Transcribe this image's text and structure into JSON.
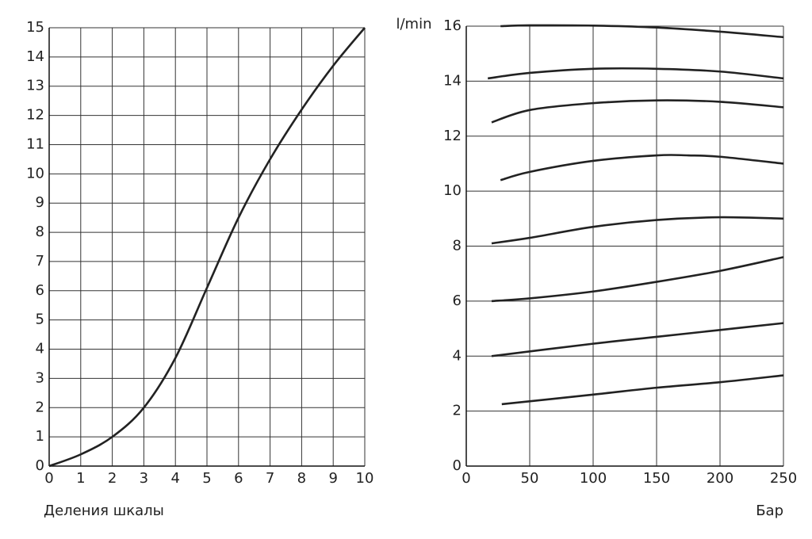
{
  "chart_data": [
    {
      "type": "line",
      "xlabel": "Деления шкалы",
      "xlim": [
        0,
        10
      ],
      "xticks": [
        0,
        1,
        2,
        3,
        4,
        5,
        6,
        7,
        8,
        9,
        10
      ],
      "ylim": [
        0,
        15
      ],
      "yticks": [
        0,
        1,
        2,
        3,
        4,
        5,
        6,
        7,
        8,
        9,
        10,
        11,
        12,
        13,
        14,
        15
      ],
      "grid": true,
      "series": [
        {
          "color": "#222222",
          "x": [
            0,
            1,
            2,
            3,
            4,
            5,
            6,
            7,
            8,
            9,
            10
          ],
          "values": [
            0,
            0.4,
            1,
            2,
            3.7,
            6.1,
            8.5,
            10.5,
            12.2,
            13.7,
            15
          ]
        }
      ]
    },
    {
      "type": "line",
      "xlabel": "Бар",
      "ylabel": "l/min",
      "xlim": [
        0,
        250
      ],
      "xticks": [
        0,
        50,
        100,
        150,
        200,
        250
      ],
      "ylim": [
        0,
        16
      ],
      "yticks": [
        0,
        2,
        4,
        6,
        8,
        10,
        12,
        14,
        16
      ],
      "grid": true,
      "series": [
        {
          "color": "#222222",
          "x": [
            27,
            50,
            100,
            150,
            200,
            250
          ],
          "values": [
            16,
            16.03,
            16.02,
            15.95,
            15.8,
            15.6
          ]
        },
        {
          "color": "#222222",
          "x": [
            17,
            50,
            100,
            150,
            200,
            250
          ],
          "values": [
            14.1,
            14.3,
            14.45,
            14.45,
            14.35,
            14.1
          ]
        },
        {
          "color": "#222222",
          "x": [
            20,
            50,
            100,
            150,
            200,
            250
          ],
          "values": [
            12.5,
            12.95,
            13.2,
            13.3,
            13.25,
            13.05
          ]
        },
        {
          "color": "#222222",
          "x": [
            27,
            50,
            100,
            150,
            175,
            200,
            250
          ],
          "values": [
            10.4,
            10.7,
            11.1,
            11.3,
            11.3,
            11.25,
            11.0
          ]
        },
        {
          "color": "#222222",
          "x": [
            20,
            50,
            100,
            150,
            200,
            250
          ],
          "values": [
            8.1,
            8.3,
            8.7,
            8.95,
            9.05,
            9.0
          ]
        },
        {
          "color": "#222222",
          "x": [
            20,
            50,
            100,
            150,
            200,
            250
          ],
          "values": [
            6.0,
            6.1,
            6.35,
            6.7,
            7.1,
            7.6
          ]
        },
        {
          "color": "#222222",
          "x": [
            20,
            100,
            150,
            200,
            250
          ],
          "values": [
            4.0,
            4.45,
            4.7,
            4.95,
            5.2
          ]
        },
        {
          "color": "#222222",
          "x": [
            28,
            100,
            150,
            200,
            250
          ],
          "values": [
            2.25,
            2.6,
            2.85,
            3.05,
            3.3
          ]
        }
      ]
    }
  ]
}
